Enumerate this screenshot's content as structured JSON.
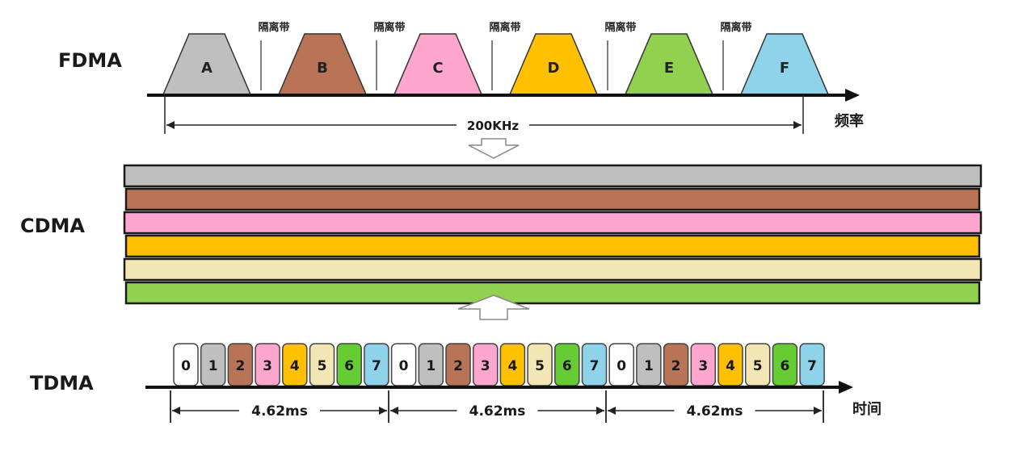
{
  "fdma": {
    "label": "FDMA",
    "channels": [
      {
        "name": "A",
        "color": "#bfbfbf"
      },
      {
        "name": "B",
        "color": "#b97356"
      },
      {
        "name": "C",
        "color": "#ffa6cf"
      },
      {
        "name": "D",
        "color": "#ffc000"
      },
      {
        "name": "E",
        "color": "#92d04f"
      },
      {
        "name": "F",
        "color": "#8fd3ea"
      }
    ],
    "guard_band": "隔离带",
    "bandwidth": "200KHz",
    "axis_label": "频率"
  },
  "cdma": {
    "label": "CDMA",
    "bands": [
      "#bfbfbf",
      "#b97356",
      "#ffa6cf",
      "#ffc000",
      "#f2e6b5",
      "#92d04f"
    ]
  },
  "tdma": {
    "label": "TDMA",
    "slots": [
      {
        "name": "0",
        "color": "#ffffff"
      },
      {
        "name": "1",
        "color": "#bfbfbf"
      },
      {
        "name": "2",
        "color": "#b97356"
      },
      {
        "name": "3",
        "color": "#ffa6cf"
      },
      {
        "name": "4",
        "color": "#ffc000"
      },
      {
        "name": "5",
        "color": "#f2e6b5"
      },
      {
        "name": "6",
        "color": "#66cc33"
      },
      {
        "name": "7",
        "color": "#8fd3ea"
      }
    ],
    "frame_length": "4.62ms",
    "axis_label": "时间"
  }
}
